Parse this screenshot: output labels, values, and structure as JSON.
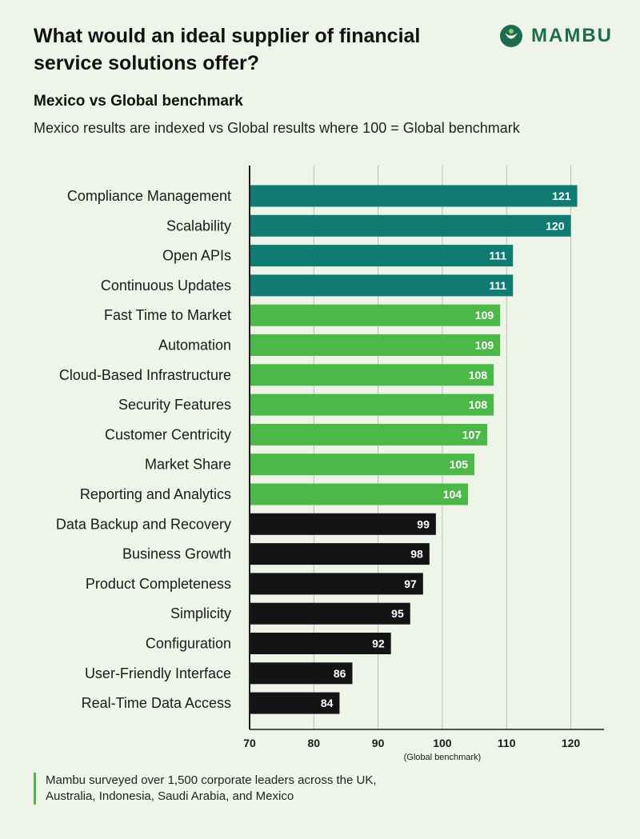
{
  "header": {
    "title": "What would an ideal supplier of financial service solutions offer?",
    "subtitle": "Mexico vs Global benchmark",
    "note": "Mexico results are indexed vs Global results where 100 = Global benchmark"
  },
  "brand": {
    "name": "MAMBU",
    "color": "#1e6b4f",
    "icon": "mambu-logo-icon"
  },
  "colors": {
    "teal": "#0f7b72",
    "green": "#4cb847",
    "black": "#141414",
    "grid": "#b8bdb5"
  },
  "chart_data": {
    "type": "bar",
    "orientation": "horizontal",
    "title": "Mexico vs Global benchmark",
    "xlabel": "",
    "xlim": [
      70,
      125
    ],
    "xticks": [
      70,
      80,
      90,
      100,
      110,
      120
    ],
    "benchmark_value": 100,
    "benchmark_label": "(Global benchmark)",
    "grid": true,
    "categories": [
      "Compliance Management",
      "Scalability",
      "Open APIs",
      "Continuous Updates",
      "Fast Time to Market",
      "Automation",
      "Cloud-Based Infrastructure",
      "Security Features",
      "Customer Centricity",
      "Market Share",
      "Reporting and Analytics",
      "Data Backup and Recovery",
      "Business Growth",
      "Product Completeness",
      "Simplicity",
      "Configuration",
      "User-Friendly Interface",
      "Real-Time Data Access"
    ],
    "values": [
      121,
      120,
      111,
      111,
      109,
      109,
      108,
      108,
      107,
      105,
      104,
      99,
      98,
      97,
      95,
      92,
      86,
      84
    ],
    "groups": [
      "teal",
      "teal",
      "teal",
      "teal",
      "green",
      "green",
      "green",
      "green",
      "green",
      "green",
      "green",
      "black",
      "black",
      "black",
      "black",
      "black",
      "black",
      "black"
    ]
  },
  "footer": {
    "text": "Mambu surveyed over 1,500 corporate leaders across the UK, Australia, Indonesia, Saudi Arabia, and Mexico"
  }
}
